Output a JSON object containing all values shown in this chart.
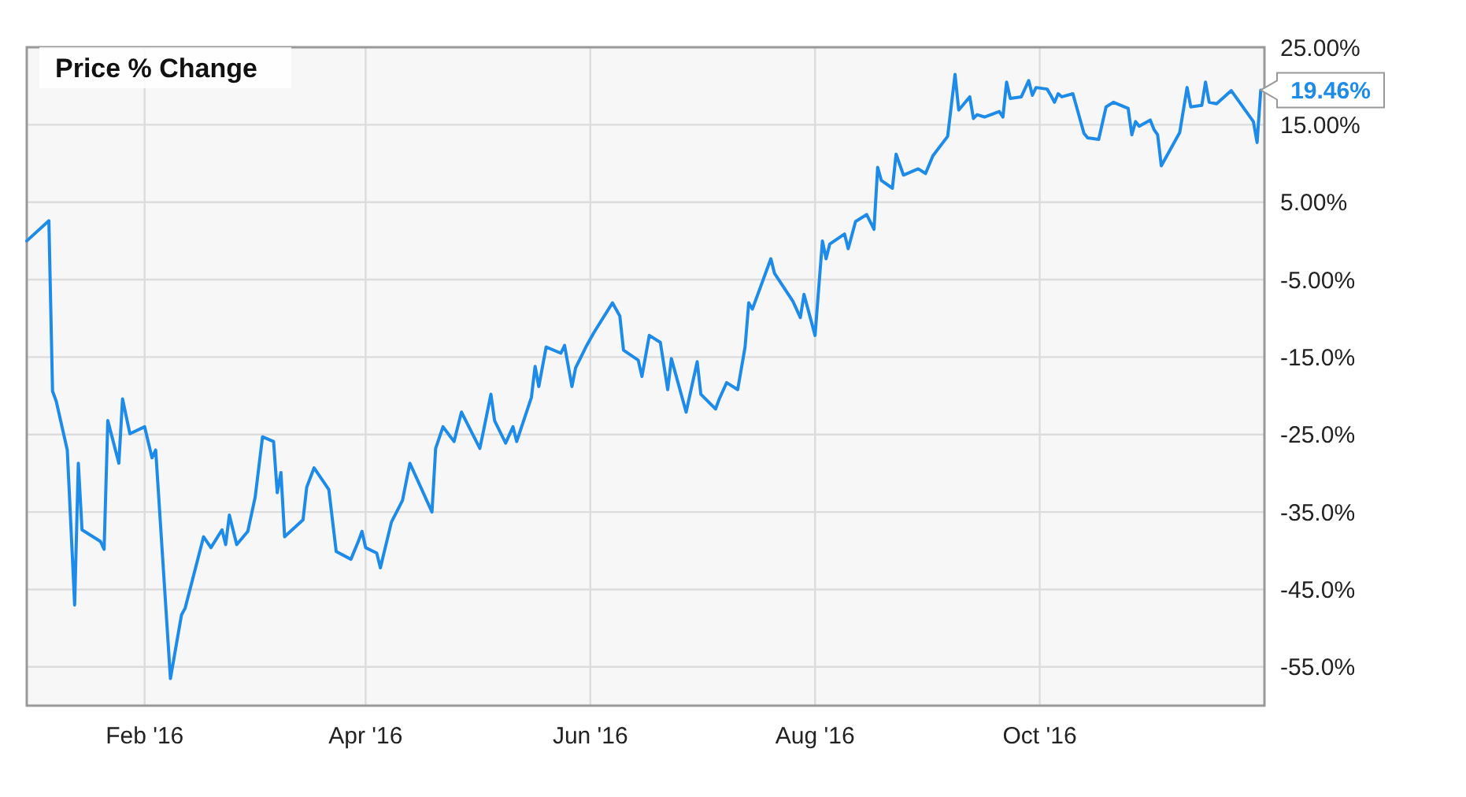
{
  "chart_data": {
    "type": "line",
    "title": "Price % Change",
    "x": [
      "2015-12-31",
      "2016-01-06",
      "2016-01-07",
      "2016-01-08",
      "2016-01-11",
      "2016-01-13",
      "2016-01-14",
      "2016-01-15",
      "2016-01-20",
      "2016-01-21",
      "2016-01-22",
      "2016-01-25",
      "2016-01-26",
      "2016-01-28",
      "2016-02-01",
      "2016-02-03",
      "2016-02-04",
      "2016-02-08",
      "2016-02-11",
      "2016-02-12",
      "2016-02-17",
      "2016-02-19",
      "2016-02-22",
      "2016-02-23",
      "2016-02-24",
      "2016-02-26",
      "2016-02-29",
      "2016-03-02",
      "2016-03-04",
      "2016-03-07",
      "2016-03-08",
      "2016-03-09",
      "2016-03-10",
      "2016-03-15",
      "2016-03-16",
      "2016-03-18",
      "2016-03-22",
      "2016-03-24",
      "2016-03-28",
      "2016-03-30",
      "2016-03-31",
      "2016-04-01",
      "2016-04-04",
      "2016-04-05",
      "2016-04-08",
      "2016-04-11",
      "2016-04-13",
      "2016-04-19",
      "2016-04-20",
      "2016-04-22",
      "2016-04-25",
      "2016-04-27",
      "2016-05-02",
      "2016-05-03",
      "2016-05-05",
      "2016-05-06",
      "2016-05-09",
      "2016-05-11",
      "2016-05-12",
      "2016-05-16",
      "2016-05-17",
      "2016-05-18",
      "2016-05-20",
      "2016-05-24",
      "2016-05-25",
      "2016-05-27",
      "2016-05-28",
      "2016-05-31",
      "2016-06-02",
      "2016-06-07",
      "2016-06-09",
      "2016-06-10",
      "2016-06-14",
      "2016-06-15",
      "2016-06-17",
      "2016-06-20",
      "2016-06-22",
      "2016-06-23",
      "2016-06-27",
      "2016-06-30",
      "2016-07-01",
      "2016-07-05",
      "2016-07-06",
      "2016-07-08",
      "2016-07-11",
      "2016-07-13",
      "2016-07-14",
      "2016-07-15",
      "2016-07-20",
      "2016-07-21",
      "2016-07-26",
      "2016-07-28",
      "2016-07-29",
      "2016-08-01",
      "2016-08-03",
      "2016-08-04",
      "2016-08-05",
      "2016-08-09",
      "2016-08-10",
      "2016-08-12",
      "2016-08-15",
      "2016-08-17",
      "2016-08-18",
      "2016-08-19",
      "2016-08-22",
      "2016-08-23",
      "2016-08-25",
      "2016-08-29",
      "2016-08-31",
      "2016-09-02",
      "2016-09-06",
      "2016-09-08",
      "2016-09-09",
      "2016-09-12",
      "2016-09-13",
      "2016-09-14",
      "2016-09-16",
      "2016-09-20",
      "2016-09-21",
      "2016-09-22",
      "2016-09-23",
      "2016-09-26",
      "2016-09-28",
      "2016-09-29",
      "2016-09-30",
      "2016-10-03",
      "2016-10-04",
      "2016-10-05",
      "2016-10-06",
      "2016-10-07",
      "2016-10-10",
      "2016-10-13",
      "2016-10-14",
      "2016-10-17",
      "2016-10-19",
      "2016-10-21",
      "2016-10-25",
      "2016-10-26",
      "2016-10-27",
      "2016-10-28",
      "2016-10-31",
      "2016-11-01",
      "2016-11-02",
      "2016-11-03",
      "2016-11-08",
      "2016-11-10",
      "2016-11-11",
      "2016-11-14",
      "2016-11-15",
      "2016-11-16",
      "2016-11-18",
      "2016-11-22",
      "2016-11-28",
      "2016-11-29",
      "2016-11-30"
    ],
    "series": [
      {
        "color": "#1f8be8",
        "values": [
          0,
          2.6,
          -19.4,
          -20.7,
          -27,
          -47,
          -28.7,
          -37.3,
          -38.8,
          -39.8,
          -23.2,
          -28.7,
          -20.4,
          -24.9,
          -24,
          -28,
          -27,
          -56.5,
          -48.3,
          -47.4,
          -38.2,
          -39.6,
          -37.3,
          -39.2,
          -35.4,
          -39.2,
          -37.5,
          -33.1,
          -25.3,
          -25.9,
          -32.5,
          -29.9,
          -38.2,
          -36,
          -31.8,
          -29.3,
          -32.1,
          -40.1,
          -41.1,
          -38.8,
          -37.5,
          -39.6,
          -40.3,
          -42.2,
          -36.3,
          -33.5,
          -28.7,
          -35,
          -26.8,
          -24,
          -25.9,
          -22.1,
          -26.8,
          -24.5,
          -19.8,
          -23.2,
          -26.1,
          -24,
          -25.9,
          -20.2,
          -16.2,
          -18.8,
          -13.7,
          -14.5,
          -13.5,
          -18.8,
          -16.4,
          -13.5,
          -11.8,
          -8,
          -9.7,
          -14.1,
          -15.4,
          -17.5,
          -12.2,
          -13.1,
          -19.2,
          -15.2,
          -22.1,
          -15.6,
          -19.8,
          -21.7,
          -20.4,
          -18.3,
          -19.2,
          -13.7,
          -8,
          -8.8,
          -2.3,
          -4.2,
          -7.8,
          -9.9,
          -6.9,
          -12.2,
          0,
          -2.3,
          -0.4,
          0.9,
          -1,
          2.5,
          3.4,
          1.5,
          9.5,
          7.8,
          6.8,
          11.2,
          8.5,
          9.3,
          8.7,
          11,
          13.5,
          21.5,
          16.9,
          18.6,
          15.8,
          16.3,
          16,
          16.7,
          16,
          20.5,
          18.4,
          18.6,
          20.7,
          18.8,
          19.8,
          19.6,
          18.8,
          17.9,
          19,
          18.6,
          19,
          13.9,
          13.3,
          13.1,
          17.3,
          17.9,
          17.1,
          13.7,
          15.4,
          14.8,
          15.6,
          14.4,
          13.7,
          9.7,
          14,
          19.8,
          17.3,
          17.5,
          20.5,
          17.9,
          17.7,
          19.4,
          15.4,
          12.7,
          19.46
        ]
      }
    ],
    "xlim": [
      "2015-12-31",
      "2016-12-01"
    ],
    "xticks": [
      {
        "value": "2016-02-01",
        "label": "Feb '16"
      },
      {
        "value": "2016-04-01",
        "label": "Apr '16"
      },
      {
        "value": "2016-06-01",
        "label": "Jun '16"
      },
      {
        "value": "2016-08-01",
        "label": "Aug '16"
      },
      {
        "value": "2016-10-01",
        "label": "Oct '16"
      }
    ],
    "ylim": [
      -60,
      25
    ],
    "yticks": [
      {
        "value": 25,
        "label": "25.00%"
      },
      {
        "value": 15,
        "label": "15.00%"
      },
      {
        "value": 5,
        "label": "5.00%"
      },
      {
        "value": -5,
        "label": "-5.00%"
      },
      {
        "value": -15,
        "label": "-15.0%"
      },
      {
        "value": -25,
        "label": "-25.0%"
      },
      {
        "value": -35,
        "label": "-35.0%"
      },
      {
        "value": -45,
        "label": "-45.0%"
      },
      {
        "value": -55,
        "label": "-55.0%"
      }
    ],
    "annotations": [
      {
        "text": "19.46%",
        "x": "2016-11-30",
        "y": 19.46
      }
    ],
    "grid": true,
    "marker": "none",
    "line_style": "solid"
  }
}
